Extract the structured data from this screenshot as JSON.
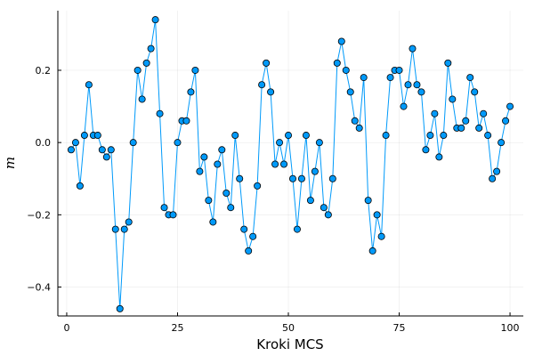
{
  "chart_data": {
    "type": "line",
    "xlabel": "Kroki MCS",
    "ylabel": "m",
    "xlim": [
      -2,
      103
    ],
    "ylim": [
      -0.48,
      0.365
    ],
    "x_ticks": [
      0,
      25,
      50,
      75,
      100
    ],
    "x_tick_labels": [
      "0",
      "25",
      "50",
      "75",
      "100"
    ],
    "y_ticks": [
      -0.4,
      -0.2,
      0.0,
      0.2
    ],
    "y_tick_labels": [
      "−0.4",
      "−0.2",
      "0.0",
      "0.2"
    ],
    "grid": true,
    "legend": "none",
    "series": [
      {
        "color": "#009AFA",
        "x": [
          1,
          2,
          3,
          4,
          5,
          6,
          7,
          8,
          9,
          10,
          11,
          12,
          13,
          14,
          15,
          16,
          17,
          18,
          19,
          20,
          21,
          22,
          23,
          24,
          25,
          26,
          27,
          28,
          29,
          30,
          31,
          32,
          33,
          34,
          35,
          36,
          37,
          38,
          39,
          40,
          41,
          42,
          43,
          44,
          45,
          46,
          47,
          48,
          49,
          50,
          51,
          52,
          53,
          54,
          55,
          56,
          57,
          58,
          59,
          60,
          61,
          62,
          63,
          64,
          65,
          66,
          67,
          68,
          69,
          70,
          71,
          72,
          73,
          74,
          75,
          76,
          77,
          78,
          79,
          80,
          81,
          82,
          83,
          84,
          85,
          86,
          87,
          88,
          89,
          90,
          91,
          92,
          93,
          94,
          95,
          96,
          97,
          98,
          99,
          100
        ],
        "y": [
          -0.02,
          0.0,
          -0.12,
          0.02,
          0.16,
          0.02,
          0.02,
          -0.02,
          -0.04,
          -0.02,
          -0.24,
          -0.46,
          -0.24,
          -0.22,
          0.0,
          0.2,
          0.12,
          0.22,
          0.26,
          0.34,
          0.08,
          -0.18,
          -0.2,
          -0.2,
          0.0,
          0.06,
          0.06,
          0.14,
          0.2,
          -0.08,
          -0.04,
          -0.16,
          -0.22,
          -0.06,
          -0.02,
          -0.14,
          -0.18,
          0.02,
          -0.1,
          -0.24,
          -0.3,
          -0.26,
          -0.12,
          0.16,
          0.22,
          0.14,
          -0.06,
          0.0,
          -0.06,
          0.02,
          -0.1,
          -0.24,
          -0.1,
          0.02,
          -0.16,
          -0.08,
          0.0,
          -0.18,
          -0.2,
          -0.1,
          0.22,
          0.28,
          0.2,
          0.14,
          0.06,
          0.04,
          0.18,
          -0.16,
          -0.3,
          -0.2,
          -0.26,
          0.02,
          0.18,
          0.2,
          0.2,
          0.1,
          0.16,
          0.26,
          0.16,
          0.14,
          -0.02,
          0.02,
          0.08,
          -0.04,
          0.02,
          0.22,
          0.12,
          0.04,
          0.04,
          0.06,
          0.18,
          0.14,
          0.04,
          0.08,
          0.02,
          -0.1,
          -0.08,
          0.0,
          0.06,
          0.1
        ]
      }
    ]
  }
}
